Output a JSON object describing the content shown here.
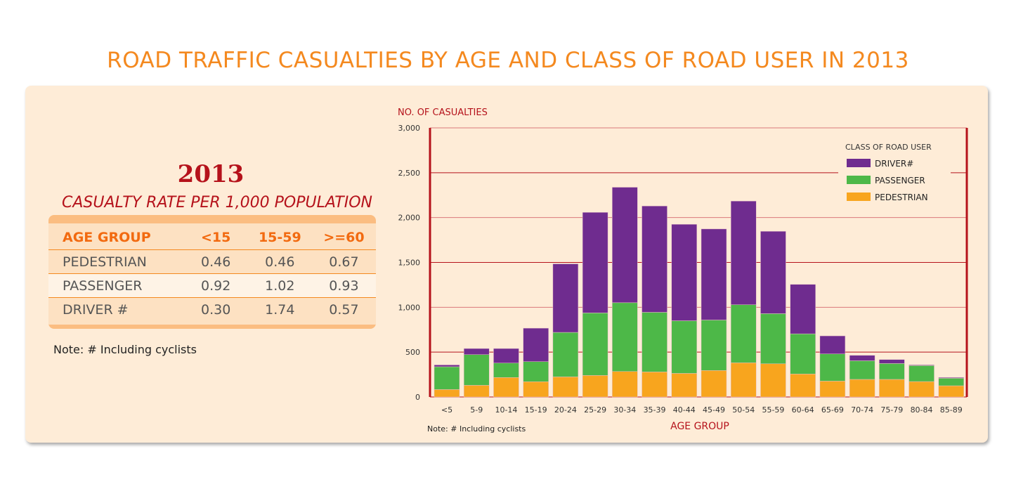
{
  "title": "ROAD TRAFFIC CASUALTIES BY AGE AND CLASS OF ROAD USER IN 2013",
  "rate_table": {
    "year": "2013",
    "subtitle": "CASUALTY RATE PER 1,000 POPULATION",
    "headers": [
      "AGE GROUP",
      "<15",
      "15-59",
      ">=60"
    ],
    "rows": [
      [
        "PEDESTRIAN",
        "0.46",
        "0.46",
        "0.67"
      ],
      [
        "PASSENGER",
        "0.92",
        "1.02",
        "0.93"
      ],
      [
        "DRIVER #",
        "0.30",
        "1.74",
        "0.57"
      ]
    ],
    "note": "Note:  #  Including cyclists"
  },
  "chart_data": {
    "type": "bar",
    "stacked": true,
    "ylabel": "NO. OF CASUALTIES",
    "xlabel": "AGE GROUP",
    "ylim": [
      0,
      3000
    ],
    "yticks": [
      "0",
      "500",
      "1,000",
      "1,500",
      "2,000",
      "2,500",
      "3,000"
    ],
    "grid": true,
    "legend_title": "CLASS OF ROAD USER",
    "legend_position": "top-right",
    "note": "Note:  # Including cyclists",
    "categories": [
      "<5",
      "5-9",
      "10-14",
      "15-19",
      "20-24",
      "25-29",
      "30-34",
      "35-39",
      "40-44",
      "45-49",
      "50-54",
      "55-59",
      "60-64",
      "65-69",
      "70-74",
      "75-79",
      "80-84",
      "85-89"
    ],
    "series": [
      {
        "name": "PEDESTRIAN",
        "color": "#f8a51e",
        "values": [
          83,
          130,
          217,
          170,
          224,
          240,
          284,
          279,
          263,
          295,
          381,
          370,
          256,
          177,
          196,
          196,
          172,
          125
        ]
      },
      {
        "name": "PASSENGER",
        "color": "#4db848",
        "values": [
          254,
          342,
          161,
          224,
          496,
          697,
          767,
          665,
          587,
          563,
          647,
          559,
          448,
          303,
          208,
          177,
          178,
          84
        ]
      },
      {
        "name": "DRIVER#",
        "color": "#6f2c8f",
        "values": [
          20,
          68,
          162,
          373,
          764,
          1121,
          1287,
          1185,
          1075,
          1015,
          1156,
          918,
          551,
          201,
          60,
          44,
          7,
          8
        ]
      }
    ]
  }
}
